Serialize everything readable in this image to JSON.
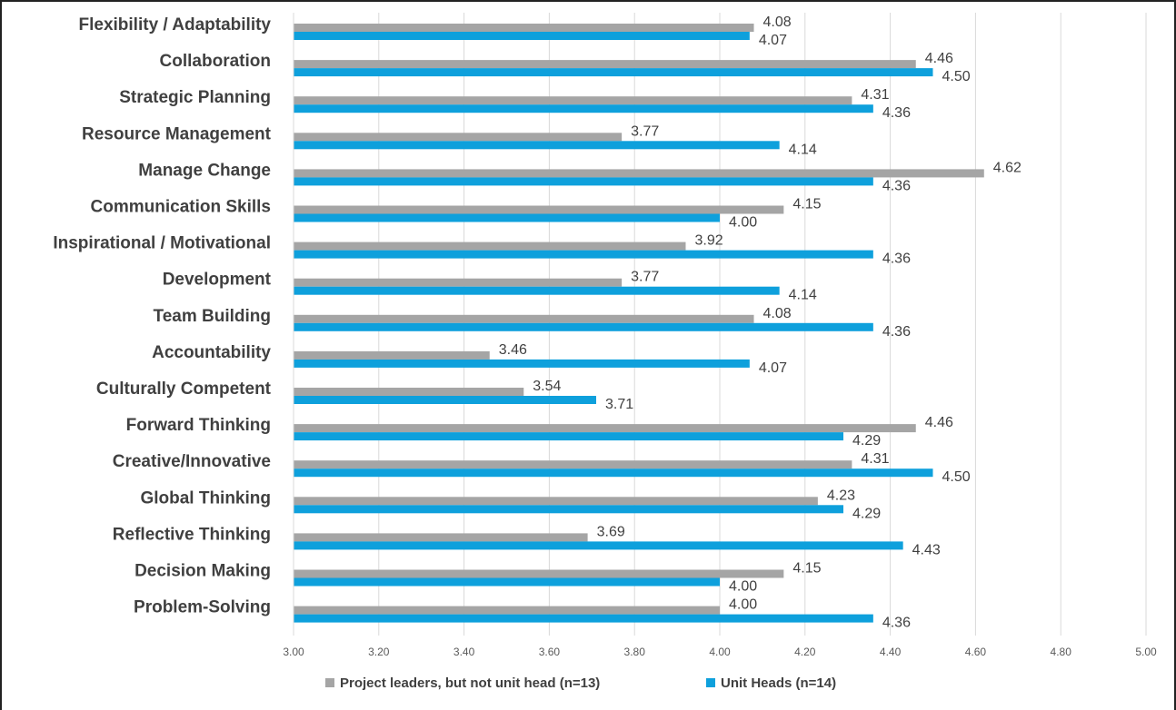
{
  "colors": {
    "series_0": "#a5a5a5",
    "series_1": "#0ea0dc",
    "grid": "#d9d9d9"
  },
  "chart_data": {
    "type": "bar",
    "orientation": "horizontal",
    "title": "",
    "xlabel": "",
    "ylabel": "",
    "xlim": [
      3.0,
      5.0
    ],
    "grid": true,
    "legend_position": "bottom",
    "x_ticks": [
      "3.00",
      "3.20",
      "3.40",
      "3.60",
      "3.80",
      "4.00",
      "4.20",
      "4.40",
      "4.60",
      "4.80",
      "5.00"
    ],
    "x_tick_values": [
      3.0,
      3.2,
      3.4,
      3.6,
      3.8,
      4.0,
      4.2,
      4.4,
      4.6,
      4.8,
      5.0
    ],
    "categories": [
      "Flexibility / Adaptability",
      "Collaboration",
      "Strategic Planning",
      "Resource Management",
      "Manage Change",
      "Communication Skills",
      "Inspirational / Motivational",
      "Development",
      "Team Building",
      "Accountability",
      "Culturally Competent",
      "Forward Thinking",
      "Creative/Innovative",
      "Global Thinking",
      "Reflective Thinking",
      "Decision Making",
      "Problem-Solving"
    ],
    "series": [
      {
        "name": "Project leaders, but not unit head (n=13)",
        "values": [
          4.08,
          4.46,
          4.31,
          3.77,
          4.62,
          4.15,
          3.92,
          3.77,
          4.08,
          3.46,
          3.54,
          4.46,
          4.31,
          4.23,
          3.69,
          4.15,
          4.0
        ],
        "labels": [
          "4.08",
          "4.46",
          "4.31",
          "3.77",
          "4.62",
          "4.15",
          "3.92",
          "3.77",
          "4.08",
          "3.46",
          "3.54",
          "4.46",
          "4.31",
          "4.23",
          "3.69",
          "4.15",
          "4.00"
        ]
      },
      {
        "name": "Unit Heads (n=14)",
        "values": [
          4.07,
          4.5,
          4.36,
          4.14,
          4.36,
          4.0,
          4.36,
          4.14,
          4.36,
          4.07,
          3.71,
          4.29,
          4.5,
          4.29,
          4.43,
          4.0,
          4.36
        ],
        "labels": [
          "4.07",
          "4.50",
          "4.36",
          "4.14",
          "4.36",
          "4.00",
          "4.36",
          "4.14",
          "4.36",
          "4.07",
          "3.71",
          "4.29",
          "4.50",
          "4.29",
          "4.43",
          "4.00",
          "4.36"
        ]
      }
    ]
  }
}
